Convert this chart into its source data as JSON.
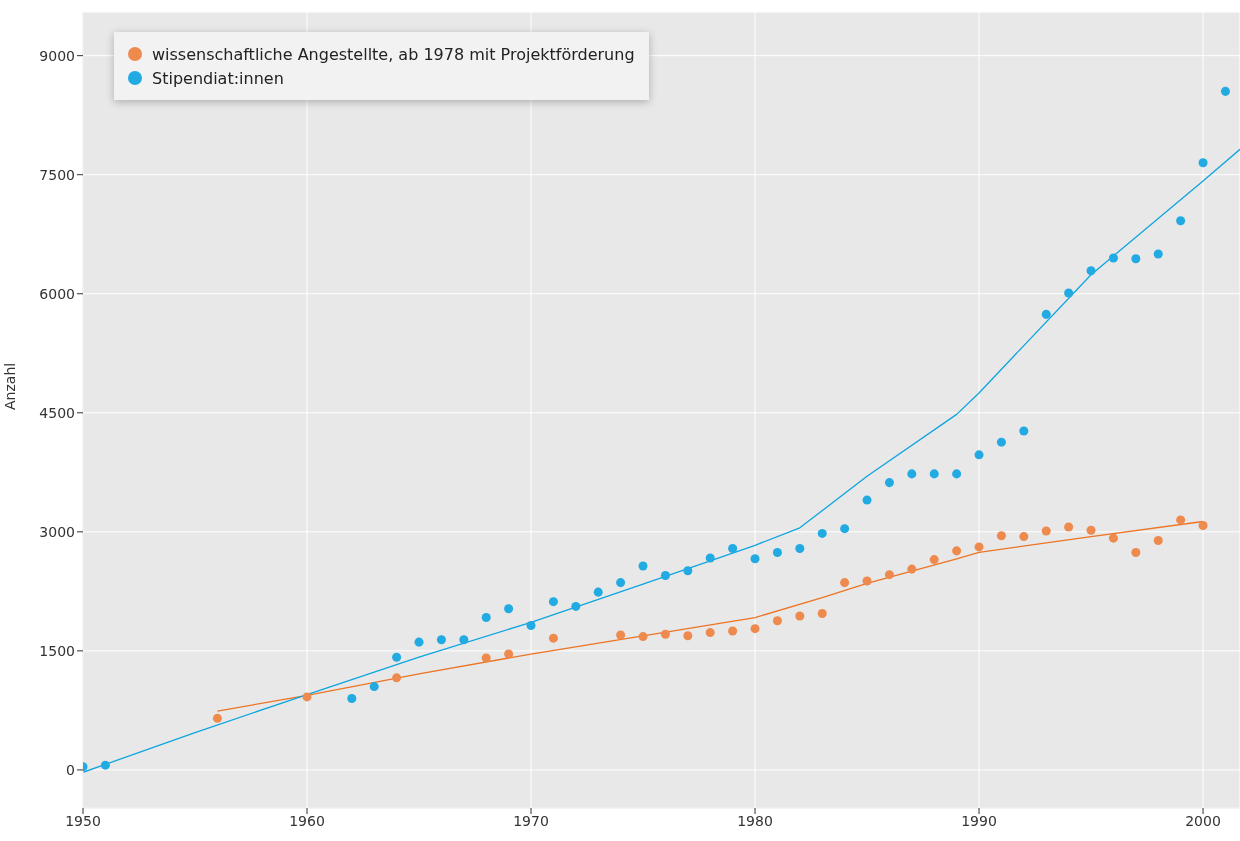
{
  "chart_data": {
    "type": "scatter",
    "ylabel": "Anzahl",
    "xlim": [
      1950,
      2001.65
    ],
    "xticks": [
      1950,
      1960,
      1970,
      1980,
      1990,
      2000
    ],
    "ylim": [
      -480,
      9550
    ],
    "yticks": [
      0,
      1500,
      3000,
      4500,
      6000,
      7500,
      9000
    ],
    "grid": true,
    "legend": "top left",
    "marker": "circle",
    "series": [
      {
        "name": "wissenschaftliche Angestellte, ab 1978 mit Projektförderung",
        "color": "#ee8a4e",
        "x": [
          1956,
          1960,
          1964,
          1968,
          1969,
          1971,
          1974,
          1975,
          1976,
          1977,
          1978,
          1979,
          1980,
          1981,
          1982,
          1983,
          1984,
          1985,
          1986,
          1987,
          1988,
          1989,
          1990,
          1991,
          1992,
          1993,
          1994,
          1995,
          1996,
          1997,
          1998,
          1999,
          2000
        ],
        "values": [
          650,
          920,
          1160,
          1410,
          1460,
          1660,
          1700,
          1680,
          1710,
          1690,
          1730,
          1750,
          1780,
          1880,
          1940,
          1970,
          2360,
          2380,
          2460,
          2530,
          2650,
          2760,
          2810,
          2950,
          2940,
          3010,
          3060,
          3020,
          2920,
          2740,
          2890,
          3150,
          3080
        ]
      },
      {
        "name": "Stipendiat:innen",
        "color": "#22aae2",
        "x": [
          1950,
          1951,
          1962,
          1963,
          1964,
          1965,
          1966,
          1967,
          1968,
          1969,
          1970,
          1971,
          1972,
          1973,
          1974,
          1975,
          1976,
          1977,
          1978,
          1979,
          1980,
          1981,
          1982,
          1983,
          1984,
          1985,
          1986,
          1987,
          1988,
          1989,
          1990,
          1991,
          1992,
          1993,
          1994,
          1995,
          1996,
          1997,
          1998,
          1999,
          2000,
          2001
        ],
        "values": [
          40,
          60,
          900,
          1050,
          1420,
          1610,
          1640,
          1640,
          1920,
          2030,
          1820,
          2120,
          2060,
          2240,
          2360,
          2570,
          2450,
          2510,
          2670,
          2790,
          2660,
          2740,
          2790,
          2980,
          3040,
          3400,
          3620,
          3730,
          3730,
          3730,
          3970,
          4130,
          4270,
          5740,
          6010,
          6290,
          6450,
          6440,
          6500,
          6920,
          7650,
          8550
        ]
      },
      {
        "type": "line",
        "marker": "none",
        "color": "#ec7424",
        "x": [
          1956,
          1960,
          1965,
          1970,
          1975,
          1980,
          1983,
          1985,
          1989,
          1990,
          1995,
          2000
        ],
        "values": [
          740,
          940,
          1210,
          1460,
          1690,
          1920,
          2170,
          2350,
          2660,
          2740,
          2940,
          3130
        ]
      },
      {
        "type": "line",
        "marker": "none",
        "color": "#0ea5e0",
        "x": [
          1950,
          1955,
          1960,
          1965,
          1970,
          1975,
          1980,
          1982,
          1985,
          1989,
          1990,
          1995,
          2000,
          2001.65
        ],
        "values": [
          -30,
          470,
          950,
          1420,
          1860,
          2340,
          2830,
          3050,
          3700,
          4480,
          4750,
          6240,
          7420,
          7820
        ]
      }
    ]
  }
}
